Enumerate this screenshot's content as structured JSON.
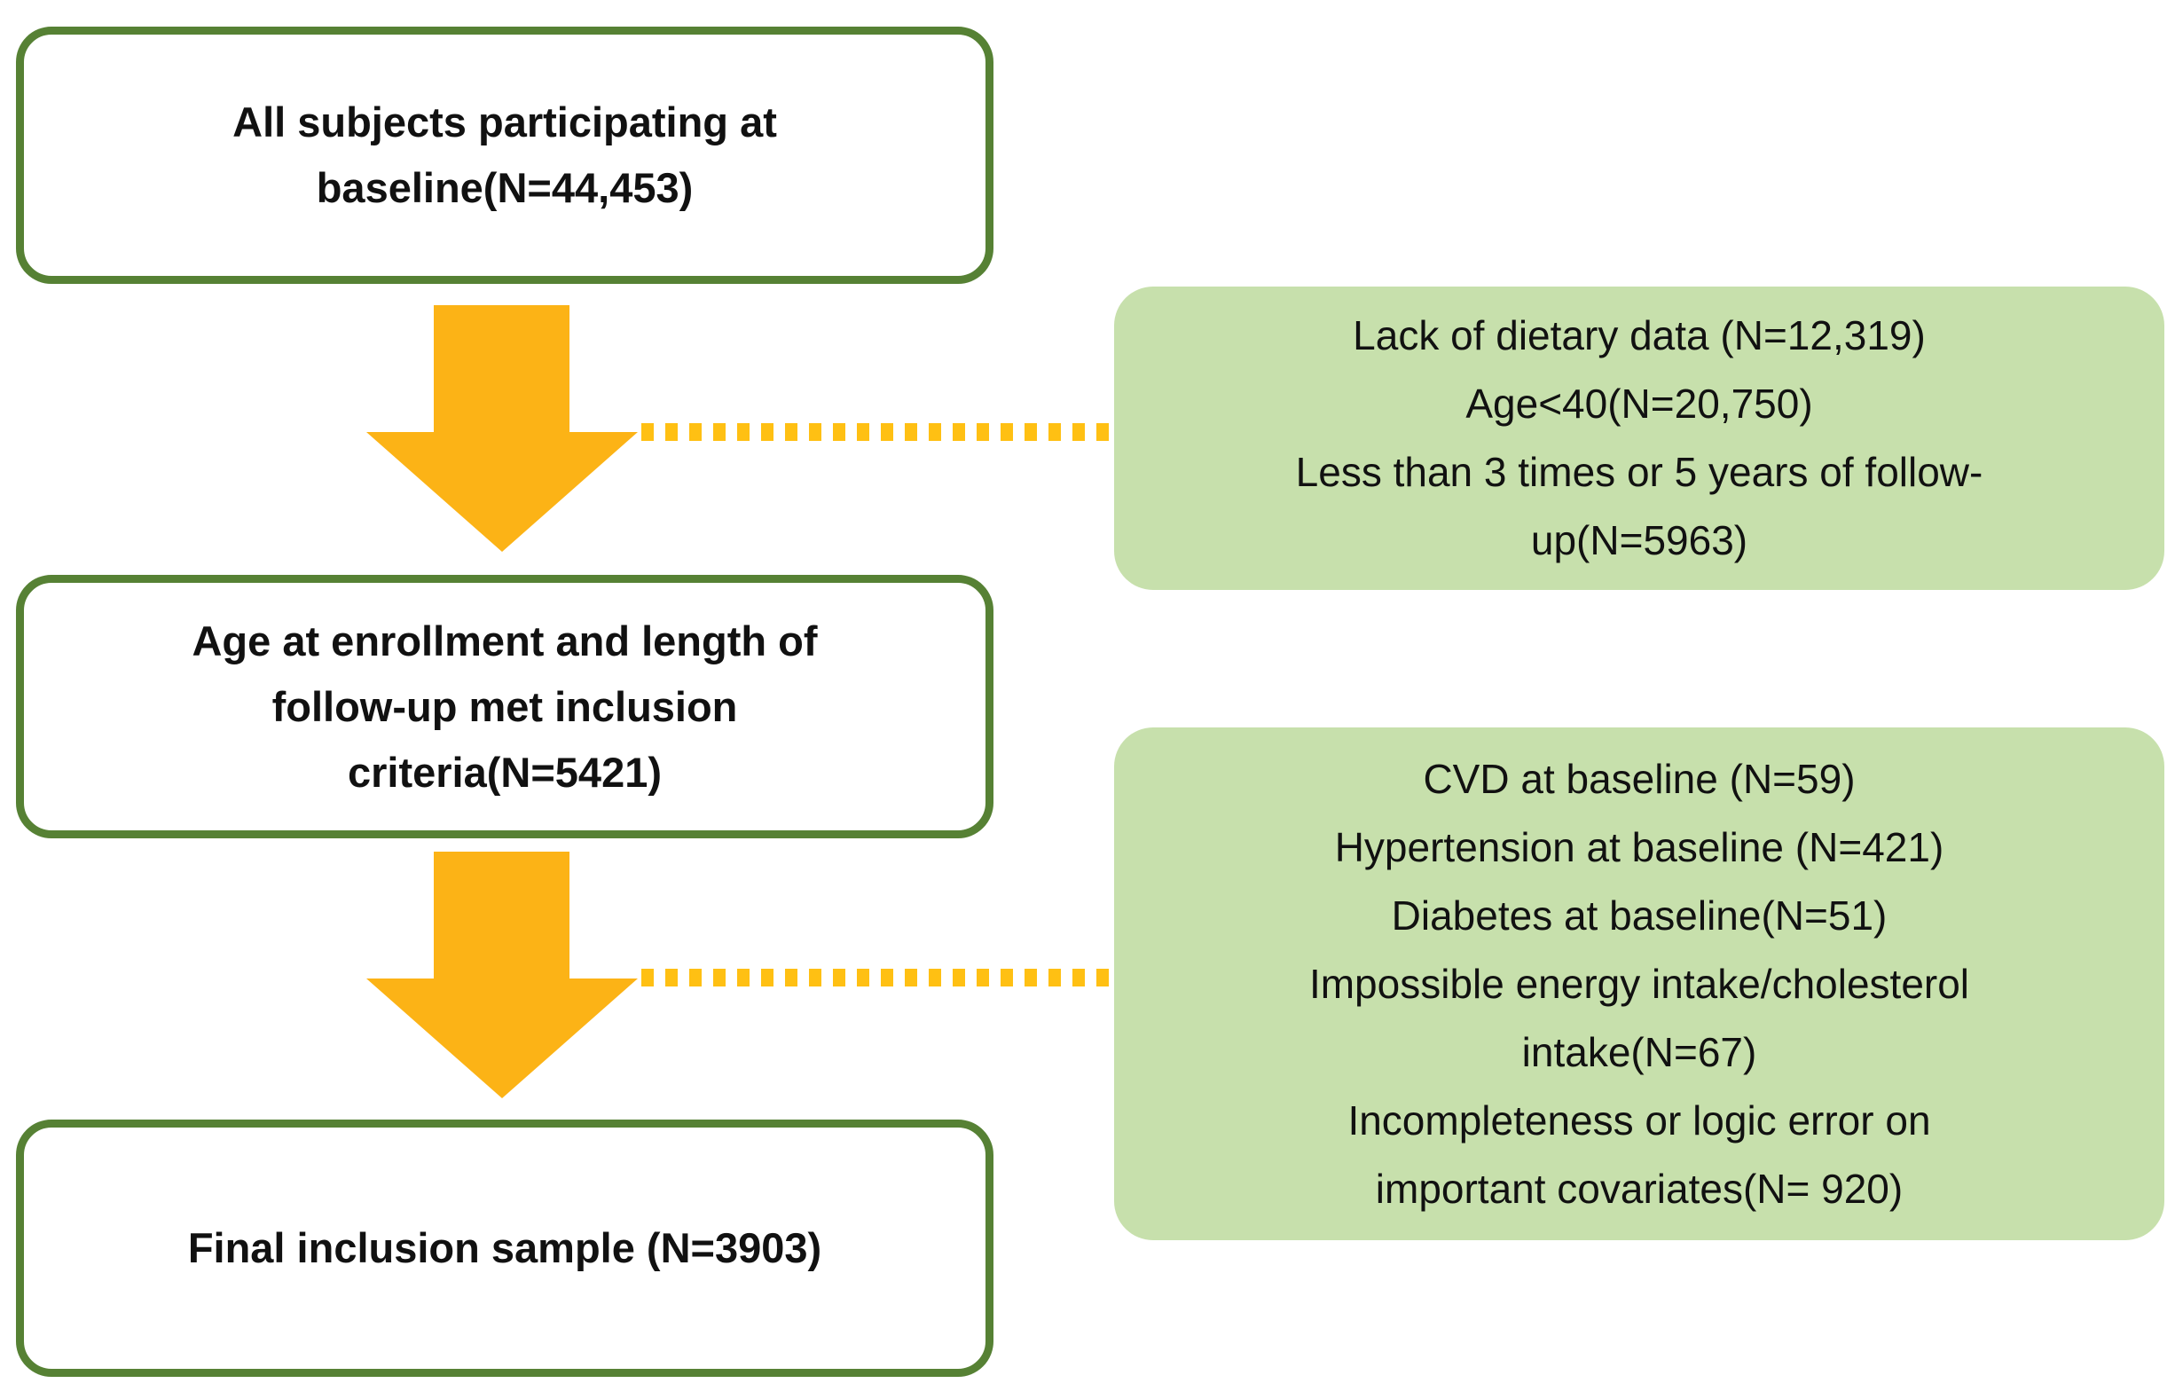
{
  "flowchart": {
    "colors": {
      "border_green": "#568134",
      "fill_green": "#C7E0AC",
      "arrow_gold": "#FCB316",
      "dot_gold": "#FFC013",
      "text_black": "#111111",
      "bg_white": "#FFFFFF"
    },
    "main_boxes": [
      {
        "name": "all-subjects-box",
        "lines": [
          "All subjects participating at",
          "baseline(N=44,453)"
        ]
      },
      {
        "name": "inclusion-criteria-box",
        "lines": [
          "Age at enrollment and length of",
          "follow-up met inclusion",
          "criteria(N=5421)"
        ]
      },
      {
        "name": "final-sample-box",
        "lines": [
          "Final inclusion sample (N=3903)"
        ]
      }
    ],
    "exclusion_boxes": [
      {
        "name": "first-exclusion-box",
        "lines": [
          "Lack of dietary data (N=12,319)",
          "Age<40(N=20,750)",
          "Less than 3 times or 5 years of follow-",
          "up(N=5963)"
        ]
      },
      {
        "name": "second-exclusion-box",
        "lines": [
          "CVD at baseline (N=59)",
          "Hypertension at baseline (N=421)",
          "Diabetes at baseline(N=51)",
          "Impossible energy intake/cholesterol",
          "intake(N=67)",
          "Incompleteness or logic error on",
          "important covariates(N= 920)"
        ]
      }
    ]
  }
}
